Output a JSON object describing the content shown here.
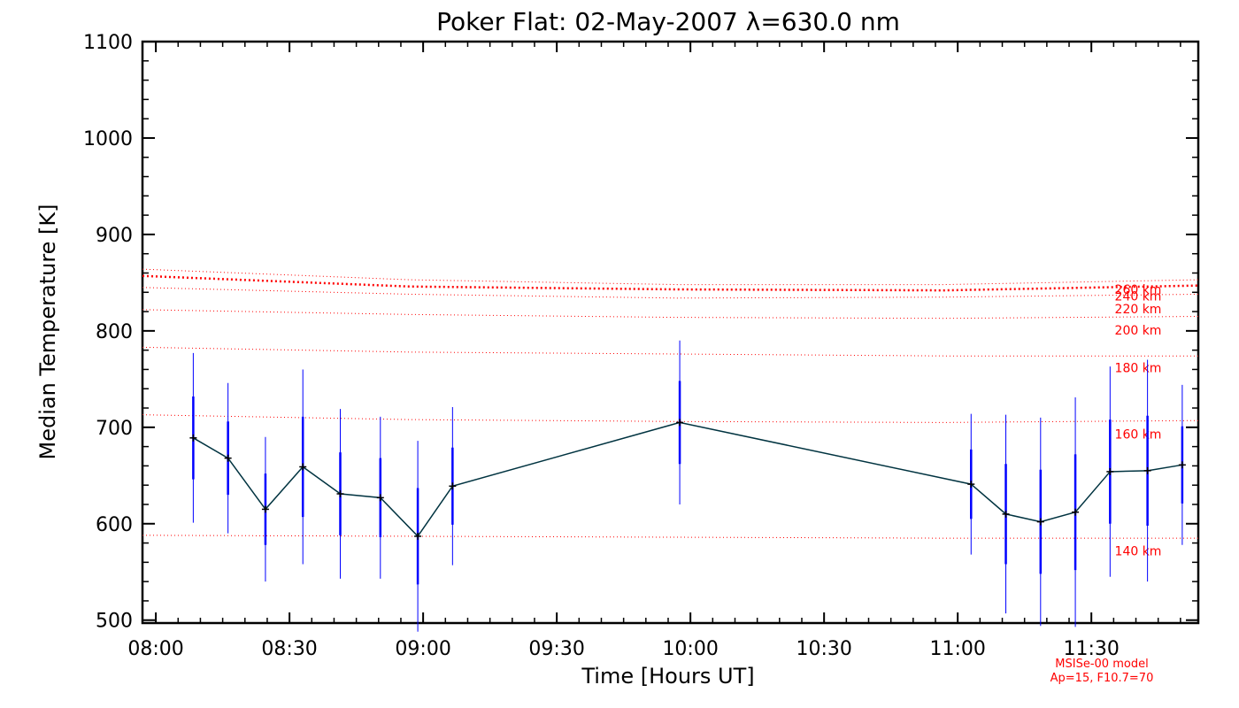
{
  "chart_data": {
    "type": "line",
    "title": "Poker Flat: 02-May-2007 λ=630.0 nm",
    "xlabel": "Time [Hours UT]",
    "ylabel": "Median Temperature [K]",
    "xlim": [
      7.95,
      11.9
    ],
    "ylim": [
      497,
      1100
    ],
    "x_ticks": [
      {
        "value": 8.0,
        "label": "08:00"
      },
      {
        "value": 8.5,
        "label": "08:30"
      },
      {
        "value": 9.0,
        "label": "09:00"
      },
      {
        "value": 9.5,
        "label": "09:30"
      },
      {
        "value": 10.0,
        "label": "10:00"
      },
      {
        "value": 10.5,
        "label": "10:30"
      },
      {
        "value": 11.0,
        "label": "11:00"
      },
      {
        "value": 11.5,
        "label": "11:30"
      }
    ],
    "y_ticks": [
      {
        "value": 500,
        "label": "500"
      },
      {
        "value": 600,
        "label": "600"
      },
      {
        "value": 700,
        "label": "700"
      },
      {
        "value": 800,
        "label": "800"
      },
      {
        "value": 900,
        "label": "900"
      },
      {
        "value": 1000,
        "label": "1000"
      },
      {
        "value": 1100,
        "label": "1100"
      }
    ],
    "series": [
      {
        "name": "Median temperature",
        "color": "#003340",
        "x": [
          8.14,
          8.27,
          8.41,
          8.55,
          8.69,
          8.84,
          8.98,
          9.11,
          9.96,
          11.05,
          11.18,
          11.31,
          11.44,
          11.57,
          11.71,
          11.84
        ],
        "y": [
          689,
          668,
          615,
          659,
          631,
          627,
          587,
          639,
          705,
          641,
          610,
          602,
          612,
          654,
          655,
          661
        ],
        "err_inner": [
          43,
          38,
          37,
          52,
          43,
          41,
          50,
          40,
          43,
          36,
          52,
          54,
          60,
          54,
          57,
          40
        ],
        "err_outer": [
          88,
          78,
          75,
          101,
          88,
          84,
          99,
          82,
          85,
          73,
          103,
          108,
          119,
          109,
          115,
          83
        ]
      }
    ],
    "error_bar_color": "#0000ff",
    "model_curves": [
      {
        "label": "260 km",
        "y": [
          857,
          846,
          843,
          842,
          847
        ],
        "dense": true
      },
      {
        "label": "240 km",
        "y": [
          864,
          853,
          848,
          848,
          853
        ],
        "dense": false
      },
      {
        "label": "220 km",
        "y": [
          845,
          838,
          834,
          835,
          838
        ],
        "dense": false
      },
      {
        "label": "200 km",
        "y": [
          822,
          817,
          814,
          813,
          815
        ],
        "dense": false
      },
      {
        "label": "180 km",
        "y": [
          783,
          778,
          776,
          774,
          774
        ],
        "dense": false
      },
      {
        "label": "160 km",
        "y": [
          713,
          708,
          706,
          705,
          707
        ],
        "dense": false
      },
      {
        "label": "140 km",
        "y": [
          588,
          587,
          586,
          585,
          585
        ],
        "dense": false
      }
    ],
    "model_curve_x": [
      7.95,
      8.95,
      9.95,
      10.95,
      11.9
    ],
    "model_color": "#ff0000",
    "model_labels_pos": [
      {
        "label": "260 km",
        "y": 843
      },
      {
        "label": "240 km",
        "y": 836
      },
      {
        "label": "220 km",
        "y": 823
      },
      {
        "label": "200 km",
        "y": 801
      },
      {
        "label": "180 km",
        "y": 762
      },
      {
        "label": "160 km",
        "y": 693
      },
      {
        "label": "140 km",
        "y": 572
      }
    ],
    "model_annotation": [
      "MSISe-00 model",
      "Ap=15, F10.7=70"
    ]
  }
}
